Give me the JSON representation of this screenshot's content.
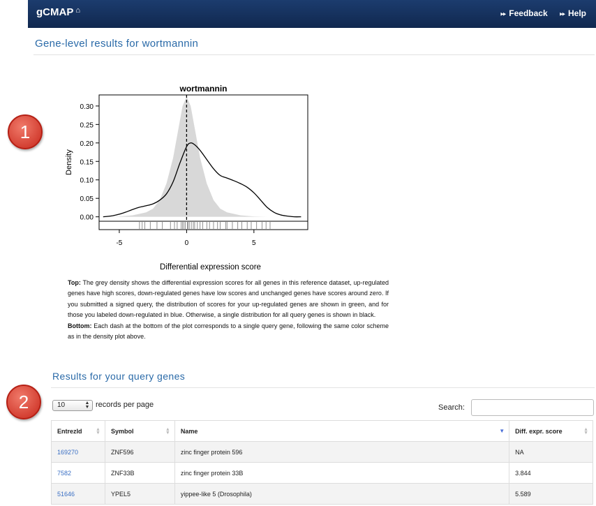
{
  "navbar": {
    "brand": "gCMAP",
    "home_icon": "home-icon",
    "links": [
      {
        "label": "Feedback",
        "icon": "fast-forward-icon"
      },
      {
        "label": "Help",
        "icon": "fast-forward-icon"
      }
    ]
  },
  "page_title": "Gene-level results for wortmannin",
  "callouts": [
    "1",
    "2"
  ],
  "chart_data": {
    "type": "area",
    "title": "wortmannin",
    "xlabel": "Differential expression score",
    "ylabel": "Density",
    "xlim": [
      -6.5,
      9
    ],
    "ylim": [
      -0.012,
      0.33
    ],
    "x_ticks": [
      -5,
      0,
      5
    ],
    "y_ticks": [
      0.0,
      0.05,
      0.1,
      0.15,
      0.2,
      0.25,
      0.3
    ],
    "y_tick_labels": [
      "0.00",
      "0.05",
      "0.10",
      "0.15",
      "0.20",
      "0.25",
      "0.30"
    ],
    "x_tick_labels": [
      "-5",
      "0",
      "5"
    ],
    "series": [
      {
        "style": "grey-filled-density",
        "color": "#d8d8d8",
        "x": [
          -6.0,
          -5.0,
          -4.0,
          -3.0,
          -2.5,
          -2.0,
          -1.5,
          -1.0,
          -0.6,
          -0.3,
          0.0,
          0.3,
          0.6,
          1.0,
          1.5,
          2.0,
          2.5,
          3.0,
          4.0,
          5.0,
          6.0
        ],
        "y": [
          0.0,
          0.001,
          0.004,
          0.012,
          0.022,
          0.045,
          0.09,
          0.16,
          0.24,
          0.3,
          0.325,
          0.3,
          0.24,
          0.16,
          0.09,
          0.045,
          0.022,
          0.012,
          0.004,
          0.001,
          0.0
        ]
      },
      {
        "style": "black-line-density",
        "color": "#000000",
        "x": [
          -6.2,
          -5.5,
          -5.0,
          -4.5,
          -4.0,
          -3.5,
          -3.0,
          -2.5,
          -2.0,
          -1.5,
          -1.0,
          -0.5,
          0.0,
          0.3,
          0.6,
          1.0,
          1.5,
          2.0,
          2.5,
          3.0,
          3.5,
          4.0,
          4.5,
          5.0,
          5.5,
          6.0,
          6.5,
          7.0,
          7.5,
          8.0,
          8.5
        ],
        "y": [
          0.0,
          0.003,
          0.007,
          0.013,
          0.02,
          0.026,
          0.03,
          0.035,
          0.045,
          0.062,
          0.095,
          0.145,
          0.19,
          0.2,
          0.195,
          0.18,
          0.155,
          0.13,
          0.112,
          0.105,
          0.098,
          0.09,
          0.08,
          0.065,
          0.045,
          0.025,
          0.012,
          0.005,
          0.002,
          0.0,
          0.0
        ]
      }
    ],
    "vline_x": 0,
    "rug": [
      -3.5,
      -3.3,
      -3.1,
      -2.7,
      -2.2,
      -1.8,
      -1.2,
      -0.9,
      -0.7,
      -0.4,
      -0.3,
      -0.2,
      -0.1,
      0.05,
      0.1,
      0.2,
      0.35,
      0.5,
      0.6,
      0.8,
      1.0,
      1.2,
      1.5,
      1.7,
      2.0,
      2.3,
      2.5,
      2.9,
      3.0,
      3.4,
      3.8,
      4.1,
      4.5,
      4.8,
      5.2,
      5.6,
      5.9,
      6.2
    ]
  },
  "caption": {
    "top_label": "Top:",
    "top_text": " The grey density shows the differential expression scores for all genes in this reference dataset, up-regulated genes have high scores, down-regulated genes have low scores and unchanged genes have scores around zero. If you submitted a signed query, the distribution of scores for your up-regulated genes are shown in green, and for those you labeled down-regulated in blue. Otherwise, a single distribution for all query genes is shown in black.",
    "bottom_label": "Bottom:",
    "bottom_text": " Each dash at the bottom of the plot corresponds to a single query gene, following the same color scheme as in the density plot above."
  },
  "section_title": "Results for your query genes",
  "length": {
    "value": "10",
    "label": "records per page"
  },
  "search": {
    "label": "Search:",
    "value": ""
  },
  "table": {
    "headers": [
      "EntrezId",
      "Symbol",
      "Name",
      "Diff. expr. score"
    ],
    "rows": [
      {
        "entrez": "169270",
        "symbol": "ZNF596",
        "name": "zinc finger protein 596",
        "score": "NA"
      },
      {
        "entrez": "7582",
        "symbol": "ZNF33B",
        "name": "zinc finger protein 33B",
        "score": "3.844"
      },
      {
        "entrez": "51646",
        "symbol": "YPEL5",
        "name": "yippee-like 5 (Drosophila)",
        "score": "5.589"
      }
    ]
  }
}
